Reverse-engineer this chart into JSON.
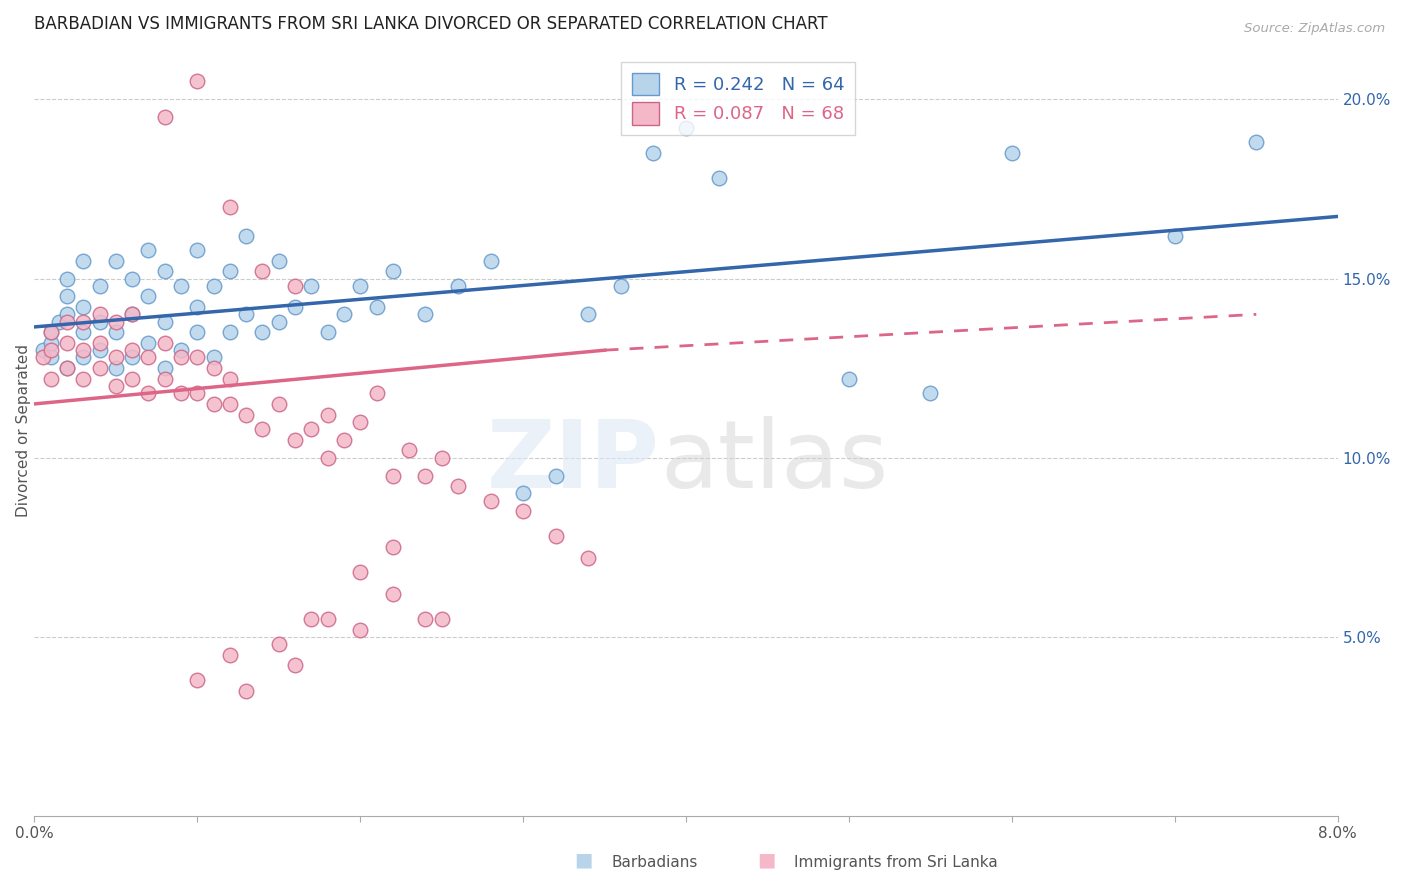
{
  "title": "BARBADIAN VS IMMIGRANTS FROM SRI LANKA DIVORCED OR SEPARATED CORRELATION CHART",
  "source": "Source: ZipAtlas.com",
  "ylabel": "Divorced or Separated",
  "ylabel_right_ticks": [
    "5.0%",
    "10.0%",
    "15.0%",
    "20.0%"
  ],
  "ylabel_right_vals": [
    0.05,
    0.1,
    0.15,
    0.2
  ],
  "barbadian_color": "#b8d4eb",
  "srilanka_color": "#f4b8c8",
  "barbadian_edge_color": "#6699cc",
  "srilanka_edge_color": "#cc6688",
  "barbadian_line_color": "#3366aa",
  "srilanka_line_color": "#dd6688",
  "barbadian_R": 0.242,
  "barbadian_N": 64,
  "srilanka_R": 0.087,
  "srilanka_N": 68,
  "xlim": [
    0.0,
    0.08
  ],
  "ylim": [
    0.0,
    0.215
  ],
  "barbadian_x": [
    0.0005,
    0.001,
    0.001,
    0.001,
    0.0015,
    0.002,
    0.002,
    0.002,
    0.002,
    0.003,
    0.003,
    0.003,
    0.003,
    0.004,
    0.004,
    0.004,
    0.005,
    0.005,
    0.005,
    0.006,
    0.006,
    0.006,
    0.007,
    0.007,
    0.007,
    0.008,
    0.008,
    0.008,
    0.009,
    0.009,
    0.01,
    0.01,
    0.01,
    0.011,
    0.011,
    0.012,
    0.012,
    0.013,
    0.013,
    0.014,
    0.015,
    0.015,
    0.016,
    0.017,
    0.018,
    0.019,
    0.02,
    0.021,
    0.022,
    0.024,
    0.026,
    0.028,
    0.03,
    0.032,
    0.034,
    0.036,
    0.038,
    0.04,
    0.042,
    0.05,
    0.055,
    0.06,
    0.07,
    0.075
  ],
  "barbadian_y": [
    0.13,
    0.128,
    0.132,
    0.135,
    0.138,
    0.125,
    0.14,
    0.145,
    0.15,
    0.128,
    0.135,
    0.142,
    0.155,
    0.13,
    0.138,
    0.148,
    0.125,
    0.135,
    0.155,
    0.128,
    0.14,
    0.15,
    0.132,
    0.145,
    0.158,
    0.125,
    0.138,
    0.152,
    0.13,
    0.148,
    0.135,
    0.142,
    0.158,
    0.128,
    0.148,
    0.135,
    0.152,
    0.14,
    0.162,
    0.135,
    0.138,
    0.155,
    0.142,
    0.148,
    0.135,
    0.14,
    0.148,
    0.142,
    0.152,
    0.14,
    0.148,
    0.155,
    0.09,
    0.095,
    0.14,
    0.148,
    0.185,
    0.192,
    0.178,
    0.122,
    0.118,
    0.185,
    0.162,
    0.188
  ],
  "srilanka_x": [
    0.0005,
    0.001,
    0.001,
    0.001,
    0.002,
    0.002,
    0.002,
    0.003,
    0.003,
    0.003,
    0.004,
    0.004,
    0.004,
    0.005,
    0.005,
    0.005,
    0.006,
    0.006,
    0.006,
    0.007,
    0.007,
    0.008,
    0.008,
    0.009,
    0.009,
    0.01,
    0.01,
    0.011,
    0.011,
    0.012,
    0.012,
    0.013,
    0.014,
    0.015,
    0.016,
    0.017,
    0.018,
    0.019,
    0.02,
    0.021,
    0.022,
    0.023,
    0.024,
    0.025,
    0.026,
    0.028,
    0.03,
    0.032,
    0.034,
    0.022,
    0.008,
    0.01,
    0.012,
    0.014,
    0.016,
    0.018,
    0.02,
    0.022,
    0.024,
    0.016,
    0.013,
    0.018,
    0.025,
    0.02,
    0.015,
    0.01,
    0.012,
    0.017
  ],
  "srilanka_y": [
    0.128,
    0.122,
    0.13,
    0.135,
    0.125,
    0.132,
    0.138,
    0.122,
    0.13,
    0.138,
    0.125,
    0.132,
    0.14,
    0.12,
    0.128,
    0.138,
    0.122,
    0.13,
    0.14,
    0.118,
    0.128,
    0.122,
    0.132,
    0.118,
    0.128,
    0.118,
    0.128,
    0.115,
    0.125,
    0.115,
    0.122,
    0.112,
    0.108,
    0.115,
    0.105,
    0.108,
    0.112,
    0.105,
    0.11,
    0.118,
    0.095,
    0.102,
    0.095,
    0.1,
    0.092,
    0.088,
    0.085,
    0.078,
    0.072,
    0.075,
    0.195,
    0.205,
    0.17,
    0.152,
    0.148,
    0.1,
    0.068,
    0.062,
    0.055,
    0.042,
    0.035,
    0.055,
    0.055,
    0.052,
    0.048,
    0.038,
    0.045,
    0.055
  ]
}
